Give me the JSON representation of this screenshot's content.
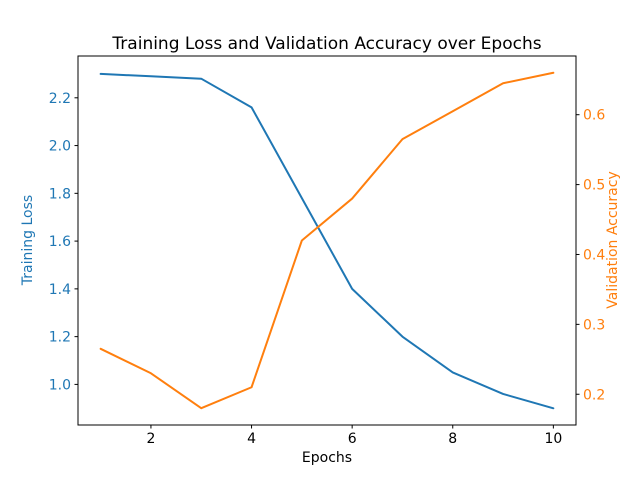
{
  "chart_data": {
    "type": "line",
    "title": "Training Loss and Validation Accuracy over Epochs",
    "xlabel": "Epochs",
    "x": [
      1,
      2,
      3,
      4,
      5,
      6,
      7,
      8,
      9,
      10
    ],
    "xlim": [
      0.55,
      10.45
    ],
    "x_ticks": [
      2,
      4,
      6,
      8,
      10
    ],
    "x_tick_color": "#000000",
    "grid": false,
    "legend": "none",
    "series": [
      {
        "name": "Training Loss",
        "axis": "left",
        "color": "#1f77b4",
        "values": [
          2.3,
          2.29,
          2.28,
          2.16,
          1.78,
          1.4,
          1.2,
          1.05,
          0.96,
          0.9
        ]
      },
      {
        "name": "Validation Accuracy",
        "axis": "right",
        "color": "#ff7f0e",
        "values": [
          0.265,
          0.23,
          0.18,
          0.21,
          0.42,
          0.48,
          0.565,
          0.605,
          0.645,
          0.66
        ]
      }
    ],
    "left_axis": {
      "label": "Training Loss",
      "color": "#1f77b4",
      "ticks": [
        1.0,
        1.2,
        1.4,
        1.6,
        1.8,
        2.0,
        2.2
      ],
      "lim": [
        0.83,
        2.375
      ]
    },
    "right_axis": {
      "label": "Validation Accuracy",
      "color": "#ff7f0e",
      "ticks": [
        0.2,
        0.3,
        0.4,
        0.5,
        0.6
      ],
      "lim": [
        0.156,
        0.684
      ]
    }
  }
}
